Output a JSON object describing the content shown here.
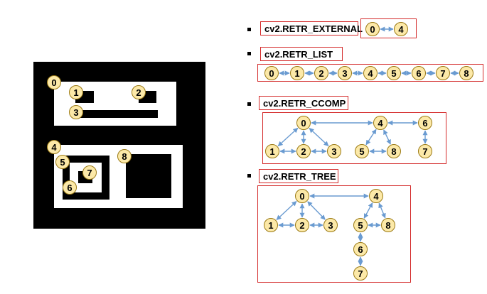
{
  "image": {
    "contour_labels": [
      "0",
      "1",
      "2",
      "3",
      "4",
      "5",
      "6",
      "7",
      "8"
    ]
  },
  "modes": [
    {
      "label": "cv2.RETR_EXTERNAL",
      "nodes": [
        "0",
        "4"
      ],
      "edges": [
        [
          "0",
          "4"
        ]
      ]
    },
    {
      "label": "cv2.RETR_LIST",
      "nodes": [
        "0",
        "1",
        "2",
        "3",
        "4",
        "5",
        "6",
        "7",
        "8"
      ],
      "edges": [
        [
          "0",
          "1"
        ],
        [
          "1",
          "2"
        ],
        [
          "2",
          "3"
        ],
        [
          "3",
          "4"
        ],
        [
          "4",
          "5"
        ],
        [
          "5",
          "6"
        ],
        [
          "6",
          "7"
        ],
        [
          "7",
          "8"
        ]
      ]
    },
    {
      "label": "cv2.RETR_CCOMP",
      "nodes": [
        "0",
        "1",
        "2",
        "3",
        "4",
        "5",
        "8",
        "6",
        "7"
      ],
      "edges": [
        [
          "0",
          "4"
        ],
        [
          "4",
          "6"
        ],
        [
          "0",
          "1"
        ],
        [
          "0",
          "2"
        ],
        [
          "0",
          "3"
        ],
        [
          "1",
          "2"
        ],
        [
          "2",
          "3"
        ],
        [
          "4",
          "5"
        ],
        [
          "4",
          "8"
        ],
        [
          "5",
          "8"
        ],
        [
          "6",
          "7"
        ]
      ]
    },
    {
      "label": "cv2.RETR_TREE",
      "nodes": [
        "0",
        "1",
        "2",
        "3",
        "4",
        "5",
        "8",
        "6",
        "7"
      ],
      "edges": [
        [
          "0",
          "4"
        ],
        [
          "0",
          "1"
        ],
        [
          "0",
          "2"
        ],
        [
          "0",
          "3"
        ],
        [
          "1",
          "2"
        ],
        [
          "2",
          "3"
        ],
        [
          "4",
          "5"
        ],
        [
          "4",
          "8"
        ],
        [
          "5",
          "8"
        ],
        [
          "5",
          "6"
        ],
        [
          "6",
          "7"
        ]
      ]
    }
  ]
}
